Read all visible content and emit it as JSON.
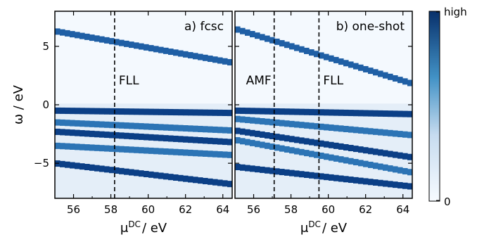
{
  "chart_data": {
    "type": "heatmap",
    "ylabel": "ω / eV",
    "ylim": [
      -8,
      8
    ],
    "yticks": [
      -5,
      0,
      5
    ],
    "colorbar": {
      "colormap": "Blues",
      "min_label": "0",
      "max_label": "high",
      "colors": [
        "#f7fbff",
        "#08306b"
      ]
    },
    "panels": [
      {
        "label": "a) fcsc",
        "xlabel": "μ^DC / eV",
        "xlabel_main": "μ",
        "xlabel_sup": "DC",
        "xlabel_unit": "/ eV",
        "xlim": [
          55,
          64.5
        ],
        "xticks": [
          56,
          58,
          60,
          62,
          64
        ],
        "vlines": [
          {
            "x": 58.2,
            "label": "FLL"
          }
        ],
        "bands": [
          {
            "x": [
              55,
              64.5
            ],
            "y": [
              6.3,
              3.6
            ]
          },
          {
            "x": [
              55,
              64.5
            ],
            "y": [
              -0.5,
              -0.7
            ]
          },
          {
            "x": [
              55,
              64.5
            ],
            "y": [
              -1.5,
              -2.2
            ]
          },
          {
            "x": [
              55,
              64.5
            ],
            "y": [
              -2.3,
              -3.2
            ]
          },
          {
            "x": [
              55,
              64.5
            ],
            "y": [
              -3.5,
              -4.3
            ]
          },
          {
            "x": [
              55,
              64.5
            ],
            "y": [
              -5.0,
              -6.8
            ]
          }
        ]
      },
      {
        "label": "b) one-shot",
        "xlabel": "μ^DC / eV",
        "xlabel_main": "μ",
        "xlabel_sup": "DC",
        "xlabel_unit": "/ eV",
        "xlim": [
          55,
          64.5
        ],
        "xticks": [
          56,
          58,
          60,
          62,
          64
        ],
        "vlines": [
          {
            "x": 57.1,
            "label": "AMF"
          },
          {
            "x": 59.5,
            "label": "FLL"
          }
        ],
        "bands": [
          {
            "x": [
              55,
              64.5
            ],
            "y": [
              6.5,
              1.8
            ]
          },
          {
            "x": [
              55,
              64.5
            ],
            "y": [
              -0.5,
              -0.8
            ]
          },
          {
            "x": [
              55,
              64.5
            ],
            "y": [
              -1.2,
              -2.6
            ]
          },
          {
            "x": [
              55,
              64.5
            ],
            "y": [
              -2.2,
              -4.5
            ]
          },
          {
            "x": [
              55,
              64.5
            ],
            "y": [
              -3.0,
              -5.8
            ]
          },
          {
            "x": [
              55,
              64.5
            ],
            "y": [
              -5.3,
              -7.0
            ]
          }
        ]
      }
    ]
  }
}
